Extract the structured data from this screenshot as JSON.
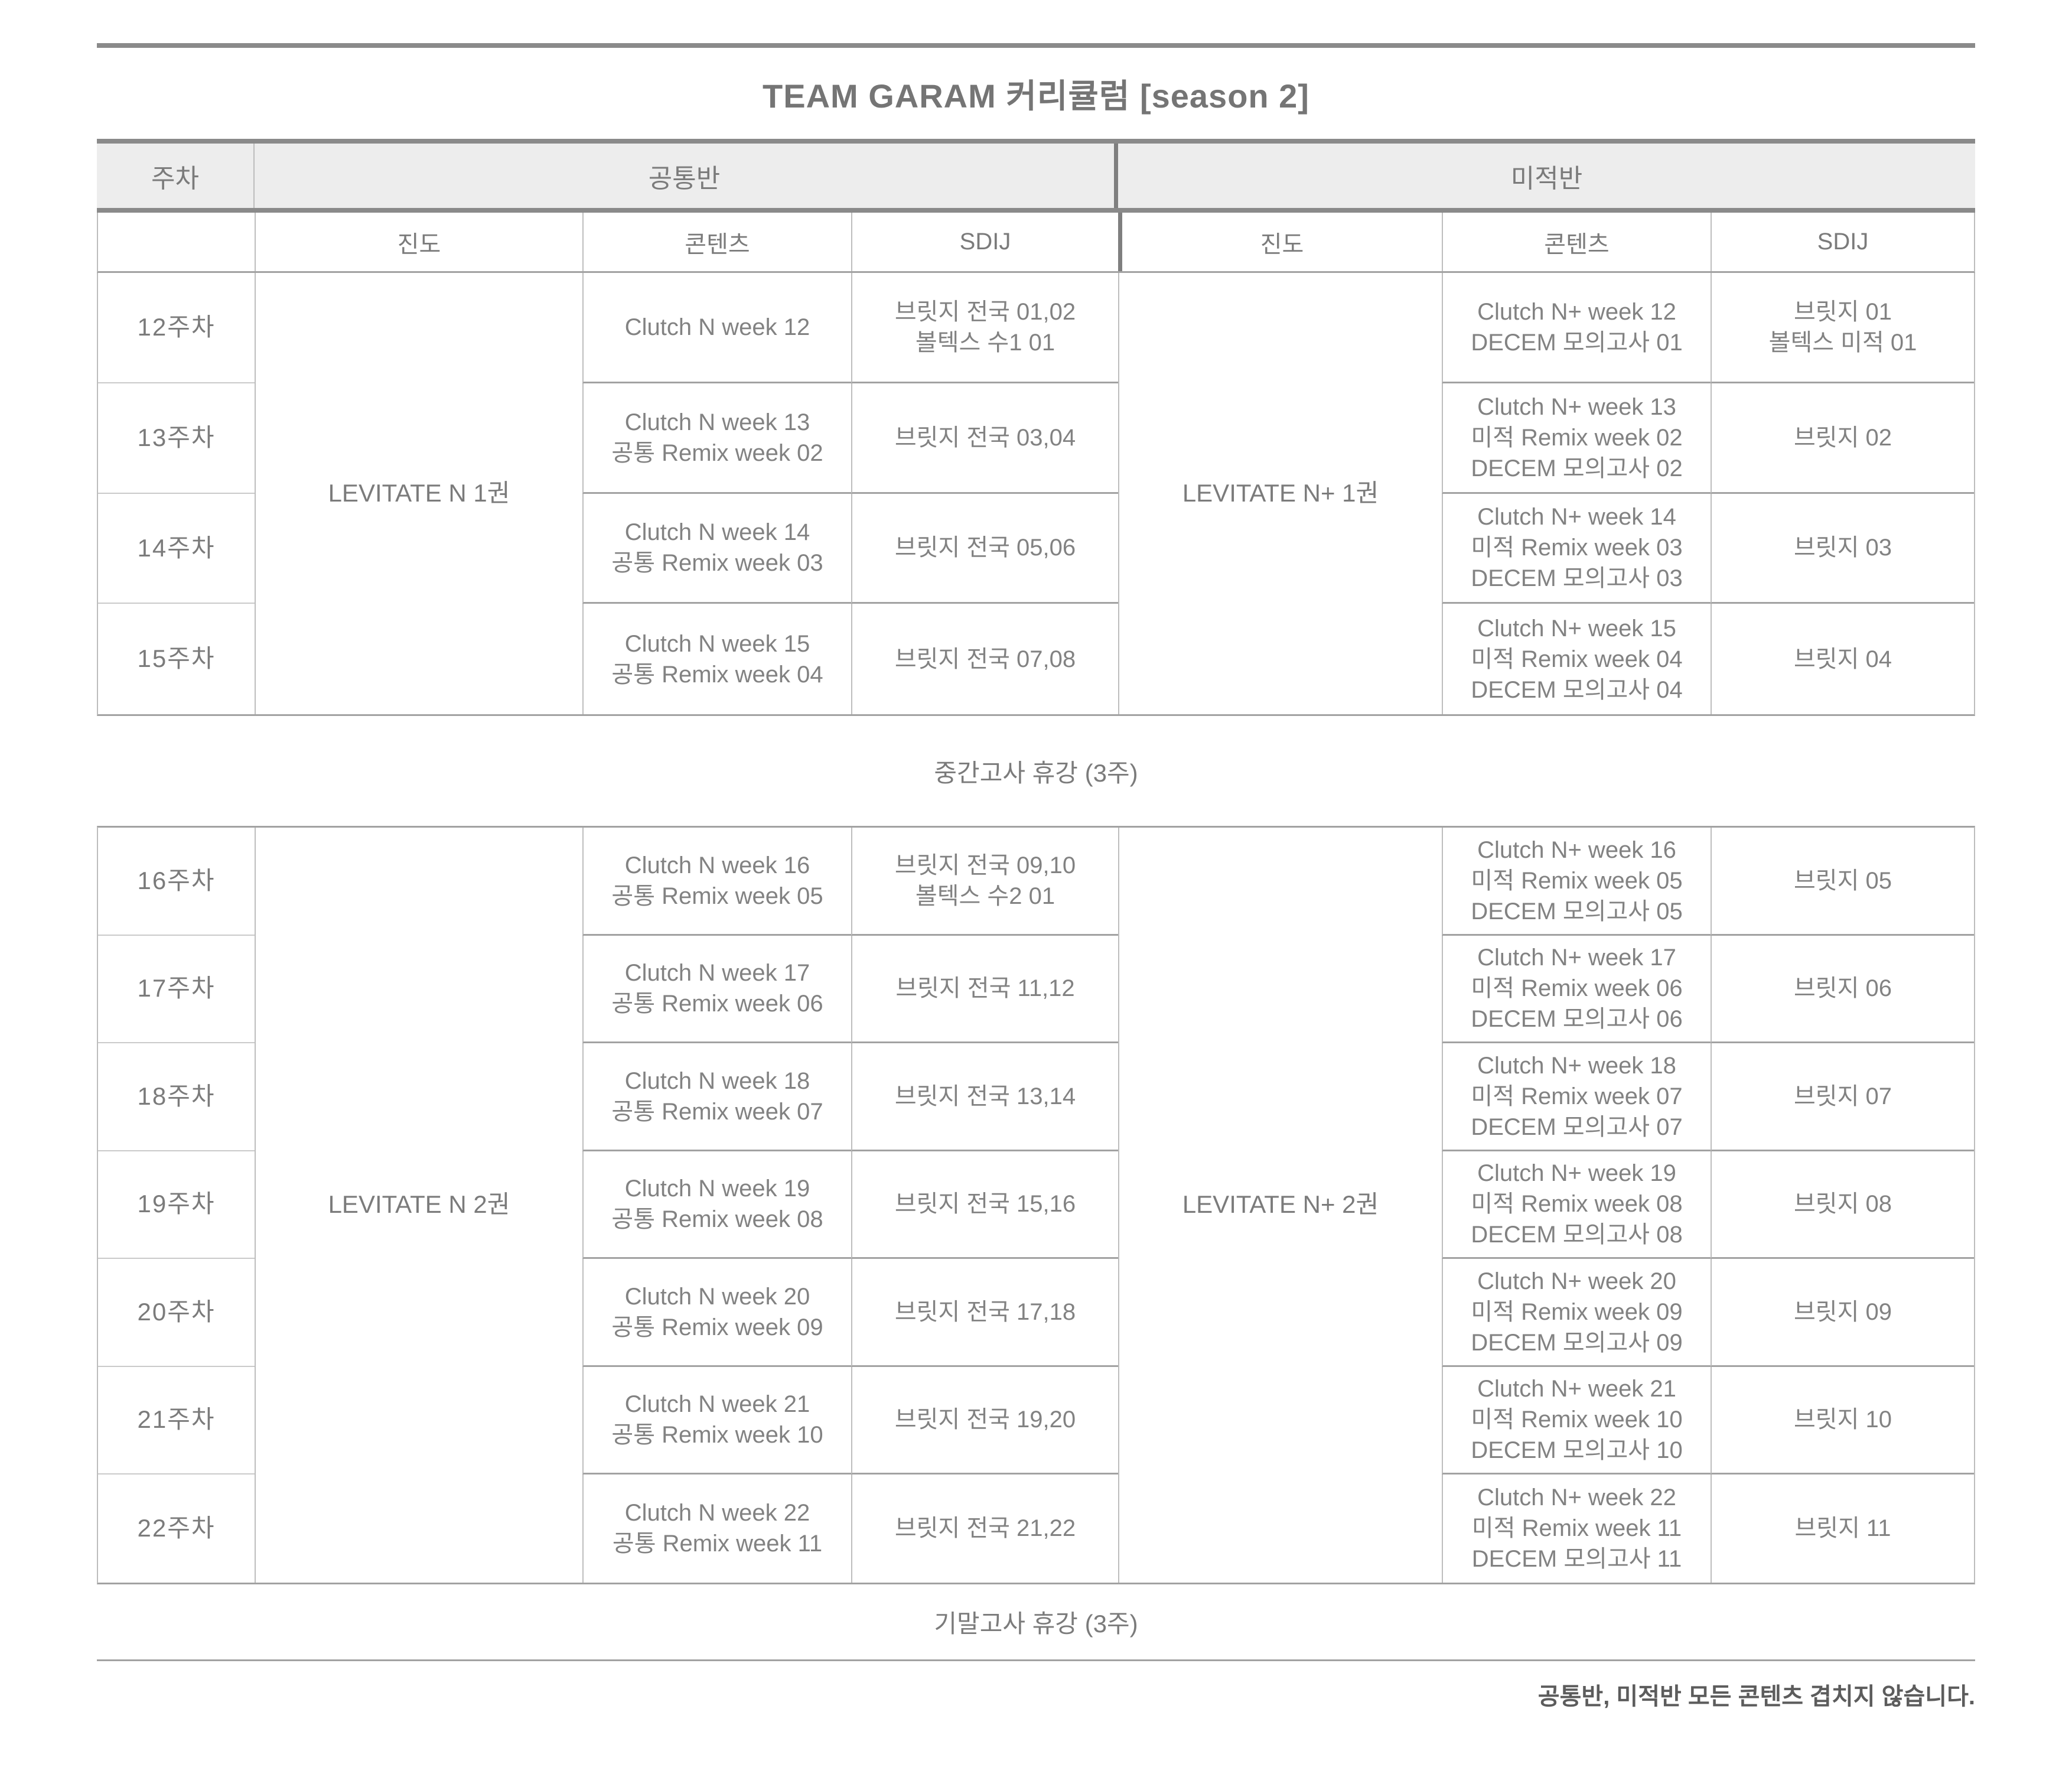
{
  "title": "TEAM GARAM 커리큘럼 [season 2]",
  "header": {
    "week": "주차",
    "common": "공통반",
    "calculus": "미적반",
    "subcolumns": {
      "progress": "진도",
      "contents": "콘텐츠",
      "sdij": "SDIJ"
    }
  },
  "colors": {
    "rule_gray": "#8a8a8a",
    "header_bg": "#ededed",
    "text_gray": "#828282"
  },
  "tables": [
    {
      "common_progress": "LEVITATE N 1권",
      "calculus_progress": "LEVITATE N+ 1권",
      "rows": [
        {
          "week": "12주차",
          "common_contents": [
            "Clutch N week 12"
          ],
          "common_sdij": [
            "브릿지 전국 01,02",
            "볼텍스 수1 01"
          ],
          "calculus_contents": [
            "Clutch N+ week 12",
            "DECEM 모의고사 01"
          ],
          "calculus_sdij": [
            "브릿지 01",
            "볼텍스 미적 01"
          ]
        },
        {
          "week": "13주차",
          "common_contents": [
            "Clutch N week 13",
            "공통 Remix week 02"
          ],
          "common_sdij": [
            "브릿지 전국 03,04"
          ],
          "calculus_contents": [
            "Clutch N+ week 13",
            "미적 Remix week 02",
            "DECEM 모의고사 02"
          ],
          "calculus_sdij": [
            "브릿지 02"
          ]
        },
        {
          "week": "14주차",
          "common_contents": [
            "Clutch N week 14",
            "공통 Remix week 03"
          ],
          "common_sdij": [
            "브릿지 전국 05,06"
          ],
          "calculus_contents": [
            "Clutch N+ week 14",
            "미적 Remix week 03",
            "DECEM 모의고사 03"
          ],
          "calculus_sdij": [
            "브릿지 03"
          ]
        },
        {
          "week": "15주차",
          "common_contents": [
            "Clutch N week 15",
            "공통 Remix week 04"
          ],
          "common_sdij": [
            "브릿지 전국 07,08"
          ],
          "calculus_contents": [
            "Clutch N+ week 15",
            "미적 Remix week 04",
            "DECEM 모의고사 04"
          ],
          "calculus_sdij": [
            "브릿지 04"
          ]
        }
      ]
    },
    {
      "common_progress": "LEVITATE N 2권",
      "calculus_progress": "LEVITATE N+ 2권",
      "rows": [
        {
          "week": "16주차",
          "common_contents": [
            "Clutch N week 16",
            "공통 Remix week 05"
          ],
          "common_sdij": [
            "브릿지 전국 09,10",
            "볼텍스 수2 01"
          ],
          "calculus_contents": [
            "Clutch N+ week 16",
            "미적 Remix week 05",
            "DECEM 모의고사 05"
          ],
          "calculus_sdij": [
            "브릿지 05"
          ]
        },
        {
          "week": "17주차",
          "common_contents": [
            "Clutch N week 17",
            "공통 Remix week 06"
          ],
          "common_sdij": [
            "브릿지 전국 11,12"
          ],
          "calculus_contents": [
            "Clutch N+ week 17",
            "미적 Remix week 06",
            "DECEM 모의고사 06"
          ],
          "calculus_sdij": [
            "브릿지 06"
          ]
        },
        {
          "week": "18주차",
          "common_contents": [
            "Clutch N week 18",
            "공통 Remix week 07"
          ],
          "common_sdij": [
            "브릿지 전국 13,14"
          ],
          "calculus_contents": [
            "Clutch N+ week 18",
            "미적 Remix week 07",
            "DECEM 모의고사 07"
          ],
          "calculus_sdij": [
            "브릿지 07"
          ]
        },
        {
          "week": "19주차",
          "common_contents": [
            "Clutch N week 19",
            "공통 Remix week 08"
          ],
          "common_sdij": [
            "브릿지 전국 15,16"
          ],
          "calculus_contents": [
            "Clutch N+ week 19",
            "미적 Remix week 08",
            "DECEM 모의고사 08"
          ],
          "calculus_sdij": [
            "브릿지 08"
          ]
        },
        {
          "week": "20주차",
          "common_contents": [
            "Clutch N week 20",
            "공통 Remix week 09"
          ],
          "common_sdij": [
            "브릿지 전국 17,18"
          ],
          "calculus_contents": [
            "Clutch N+ week 20",
            "미적 Remix week 09",
            "DECEM 모의고사 09"
          ],
          "calculus_sdij": [
            "브릿지 09"
          ]
        },
        {
          "week": "21주차",
          "common_contents": [
            "Clutch N week 21",
            "공통 Remix week 10"
          ],
          "common_sdij": [
            "브릿지 전국 19,20"
          ],
          "calculus_contents": [
            "Clutch N+ week 21",
            "미적 Remix week 10",
            "DECEM 모의고사 10"
          ],
          "calculus_sdij": [
            "브릿지 10"
          ]
        },
        {
          "week": "22주차",
          "common_contents": [
            "Clutch N week 22",
            "공통 Remix week 11"
          ],
          "common_sdij": [
            "브릿지 전국 21,22"
          ],
          "calculus_contents": [
            "Clutch N+ week 22",
            "미적 Remix week 11",
            "DECEM 모의고사 11"
          ],
          "calculus_sdij": [
            "브릿지 11"
          ]
        }
      ]
    }
  ],
  "break_midterm": "중간고사 휴강 (3주)",
  "break_final": "기말고사 휴강 (3주)",
  "note": "공통반, 미적반 모든 콘텐츠 겹치지 않습니다."
}
